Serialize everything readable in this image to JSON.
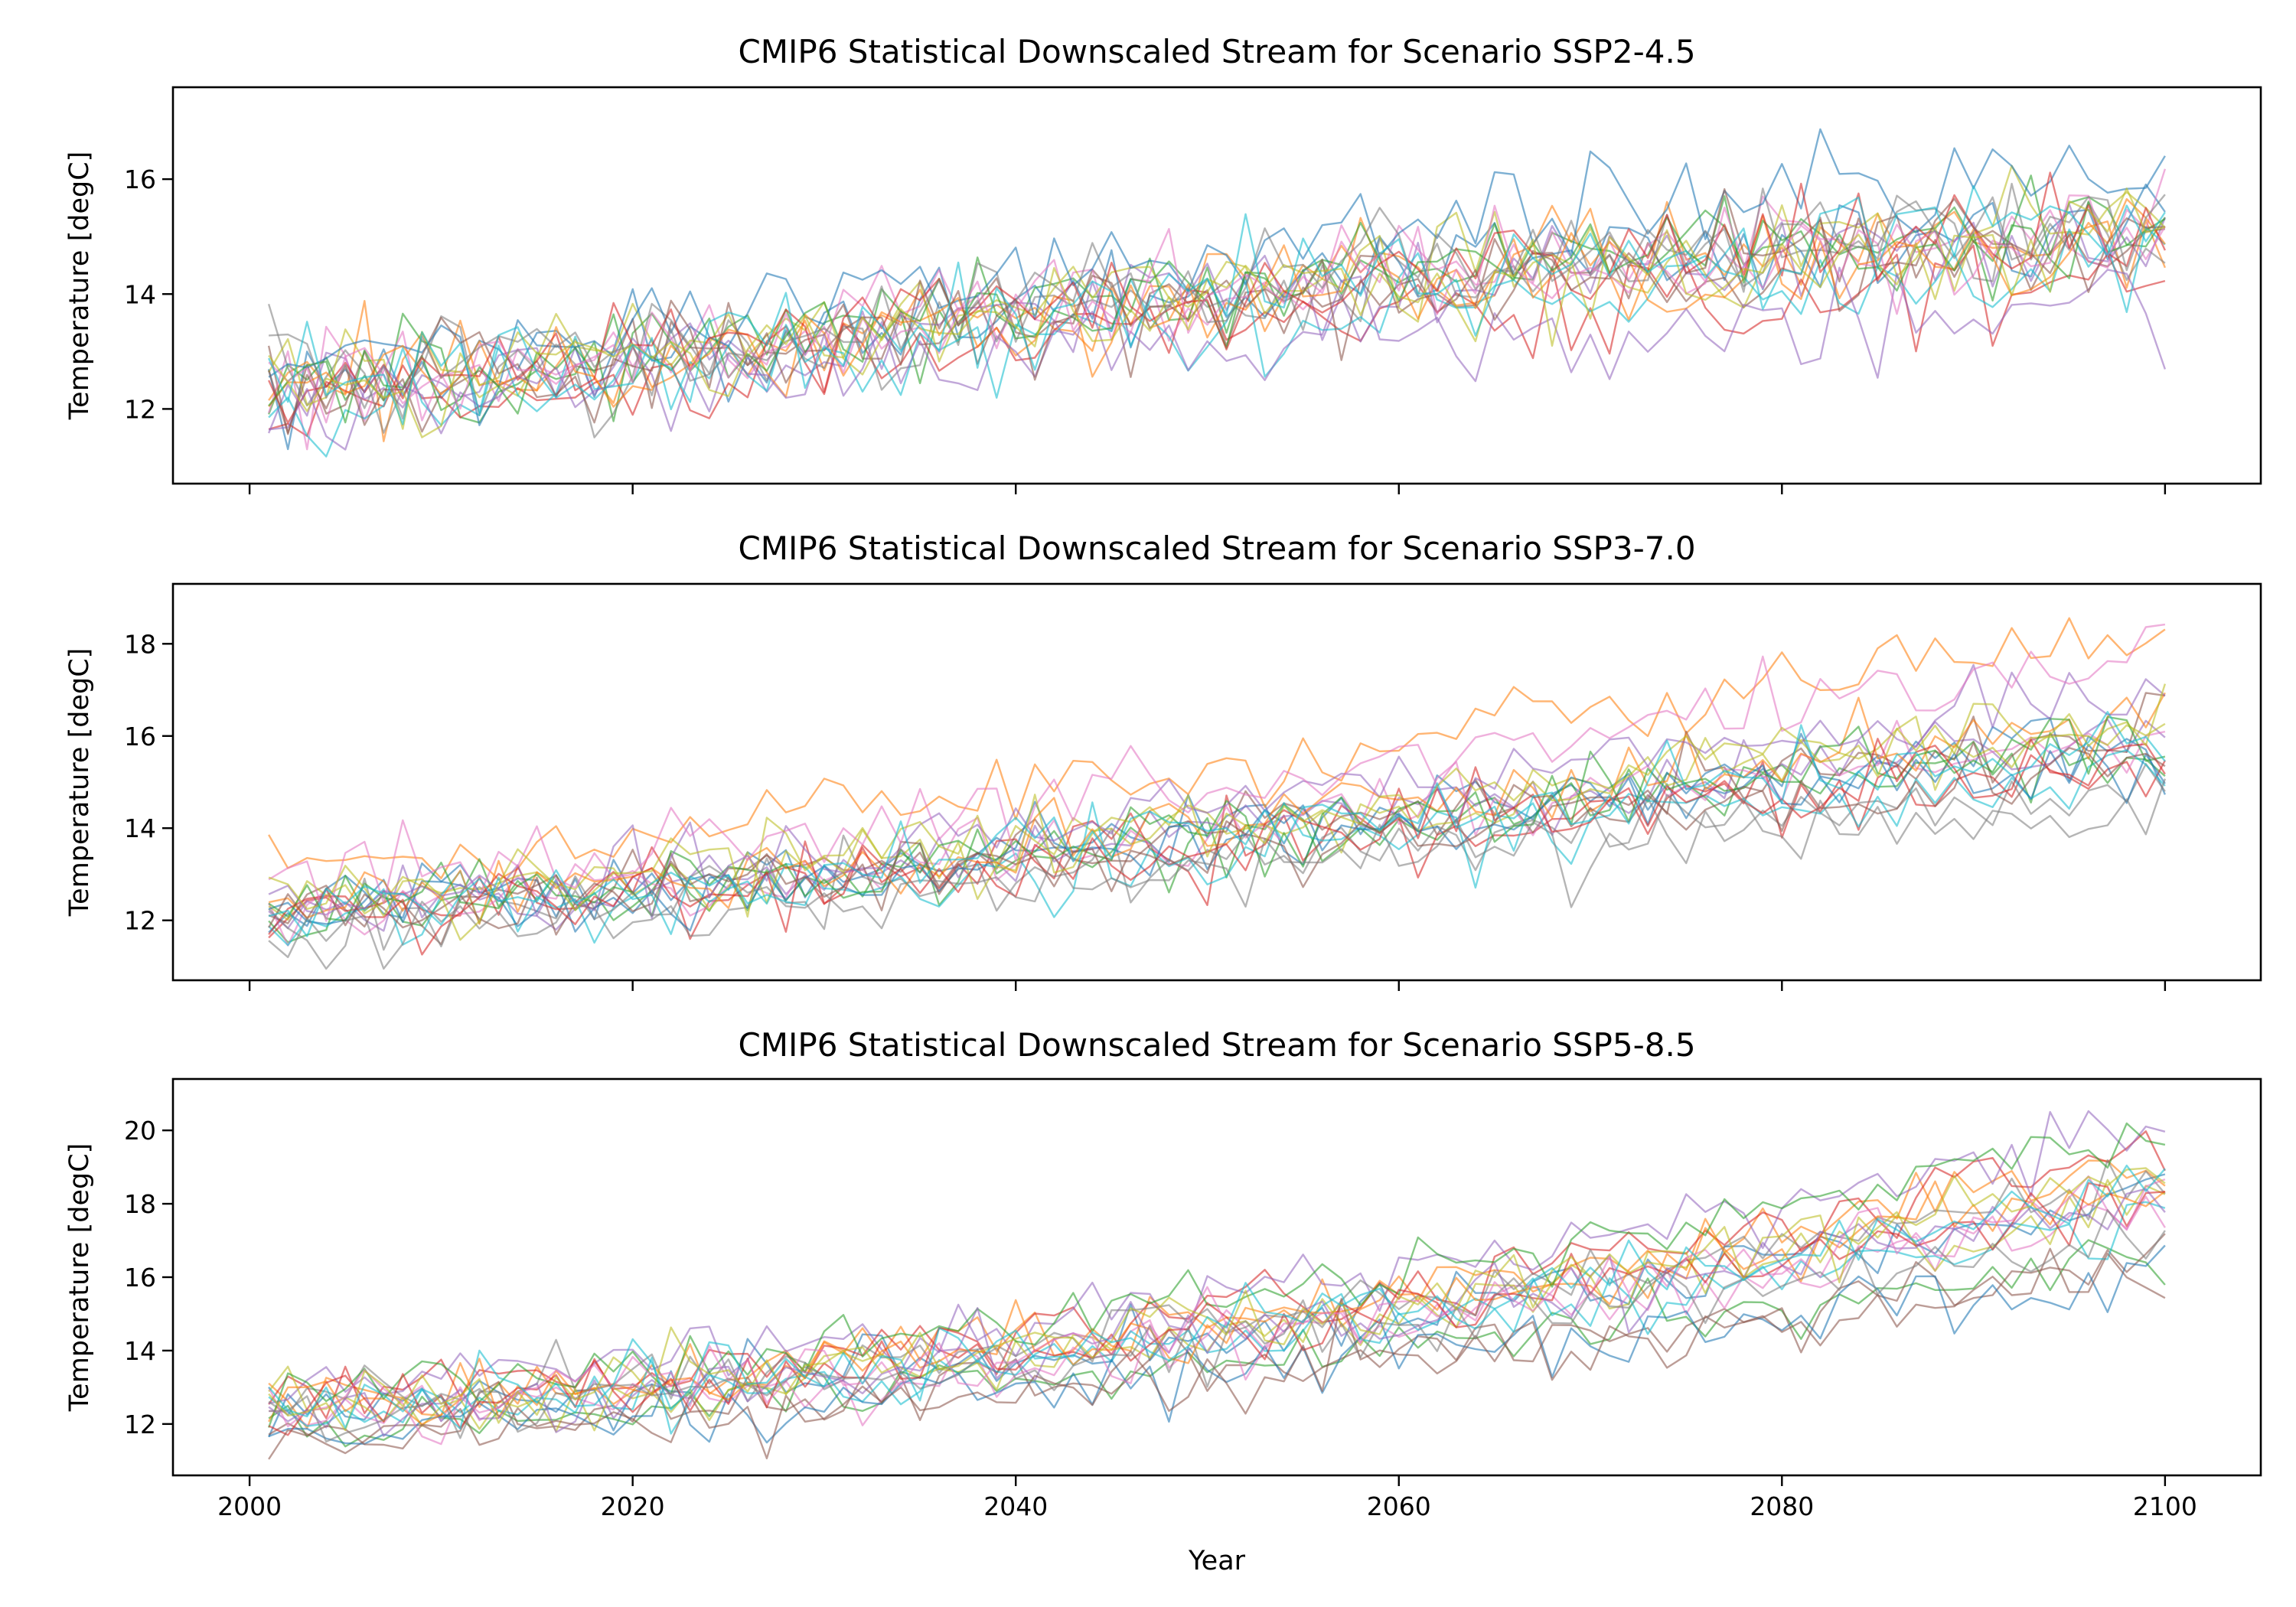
{
  "figure": {
    "xlabel": "Year",
    "ylabel": "Temperature [degC]"
  },
  "chart_data": [
    {
      "type": "line",
      "title": "CMIP6 Statistical Downscaled Stream for Scenario SSP2-4.5",
      "scenario": "SSP2-4.5",
      "xlabel": "",
      "ylabel": "Temperature [degC]",
      "xlim": [
        1996,
        2105
      ],
      "ylim": [
        10.7,
        17.6
      ],
      "xticks": [
        2000,
        2020,
        2040,
        2060,
        2080,
        2100
      ],
      "xtick_labels": [
        "",
        "",
        "",
        "",
        "",
        ""
      ],
      "yticks": [
        12,
        14,
        16
      ],
      "ytick_labels": [
        "12",
        "14",
        "16"
      ],
      "x_range": [
        2001,
        2100
      ],
      "member_count": 20,
      "ensemble_mean_anchors": {
        "x": [
          2001,
          2020,
          2040,
          2060,
          2080,
          2100
        ],
        "y": [
          12.3,
          12.8,
          13.6,
          14.2,
          14.6,
          15.0
        ]
      },
      "ensemble_spread_anchors": {
        "x": [
          2001,
          2020,
          2040,
          2060,
          2080,
          2100
        ],
        "y": [
          0.5,
          0.5,
          0.55,
          0.75,
          0.9,
          1.0
        ]
      },
      "noise": 0.45
    },
    {
      "type": "line",
      "title": "CMIP6 Statistical Downscaled Stream for Scenario SSP3-7.0",
      "scenario": "SSP3-7.0",
      "xlabel": "",
      "ylabel": "Temperature [degC]",
      "xlim": [
        1996,
        2105
      ],
      "ylim": [
        10.7,
        19.3
      ],
      "xticks": [
        2000,
        2020,
        2040,
        2060,
        2080,
        2100
      ],
      "xtick_labels": [
        "",
        "",
        "",
        "",
        "",
        ""
      ],
      "yticks": [
        12,
        14,
        16,
        18
      ],
      "ytick_labels": [
        "12",
        "14",
        "16",
        "18"
      ],
      "x_range": [
        2001,
        2100
      ],
      "member_count": 20,
      "ensemble_mean_anchors": {
        "x": [
          2001,
          2020,
          2040,
          2060,
          2080,
          2100
        ],
        "y": [
          12.3,
          12.8,
          13.6,
          14.5,
          15.4,
          16.2
        ]
      },
      "ensemble_spread_anchors": {
        "x": [
          2001,
          2020,
          2040,
          2060,
          2080,
          2100
        ],
        "y": [
          0.4,
          0.4,
          0.55,
          0.75,
          1.0,
          1.2
        ]
      },
      "noise": 0.4
    },
    {
      "type": "line",
      "title": "CMIP6 Statistical Downscaled Stream for Scenario SSP5-8.5",
      "scenario": "SSP5-8.5",
      "xlabel": "Year",
      "ylabel": "Temperature [degC]",
      "xlim": [
        1996,
        2105
      ],
      "ylim": [
        10.6,
        21.4
      ],
      "xticks": [
        2000,
        2020,
        2040,
        2060,
        2080,
        2100
      ],
      "xtick_labels": [
        "2000",
        "2020",
        "2040",
        "2060",
        "2080",
        "2100"
      ],
      "yticks": [
        12,
        14,
        16,
        18,
        20
      ],
      "ytick_labels": [
        "12",
        "14",
        "16",
        "18",
        "20"
      ],
      "x_range": [
        2001,
        2100
      ],
      "member_count": 20,
      "ensemble_mean_anchors": {
        "x": [
          2001,
          2020,
          2040,
          2060,
          2080,
          2100
        ],
        "y": [
          12.3,
          12.8,
          13.8,
          14.9,
          16.3,
          18.0
        ]
      },
      "ensemble_spread_anchors": {
        "x": [
          2001,
          2020,
          2040,
          2060,
          2080,
          2100
        ],
        "y": [
          0.45,
          0.5,
          0.6,
          0.8,
          1.1,
          1.35
        ]
      },
      "noise": 0.45
    }
  ],
  "colors": {
    "series_palette": [
      "#1f77b4",
      "#ff7f0e",
      "#2ca02c",
      "#d62728",
      "#9467bd",
      "#8c564b",
      "#e377c2",
      "#7f7f7f",
      "#bcbd22",
      "#17becf"
    ],
    "axes": "#000000",
    "background": "#ffffff"
  }
}
